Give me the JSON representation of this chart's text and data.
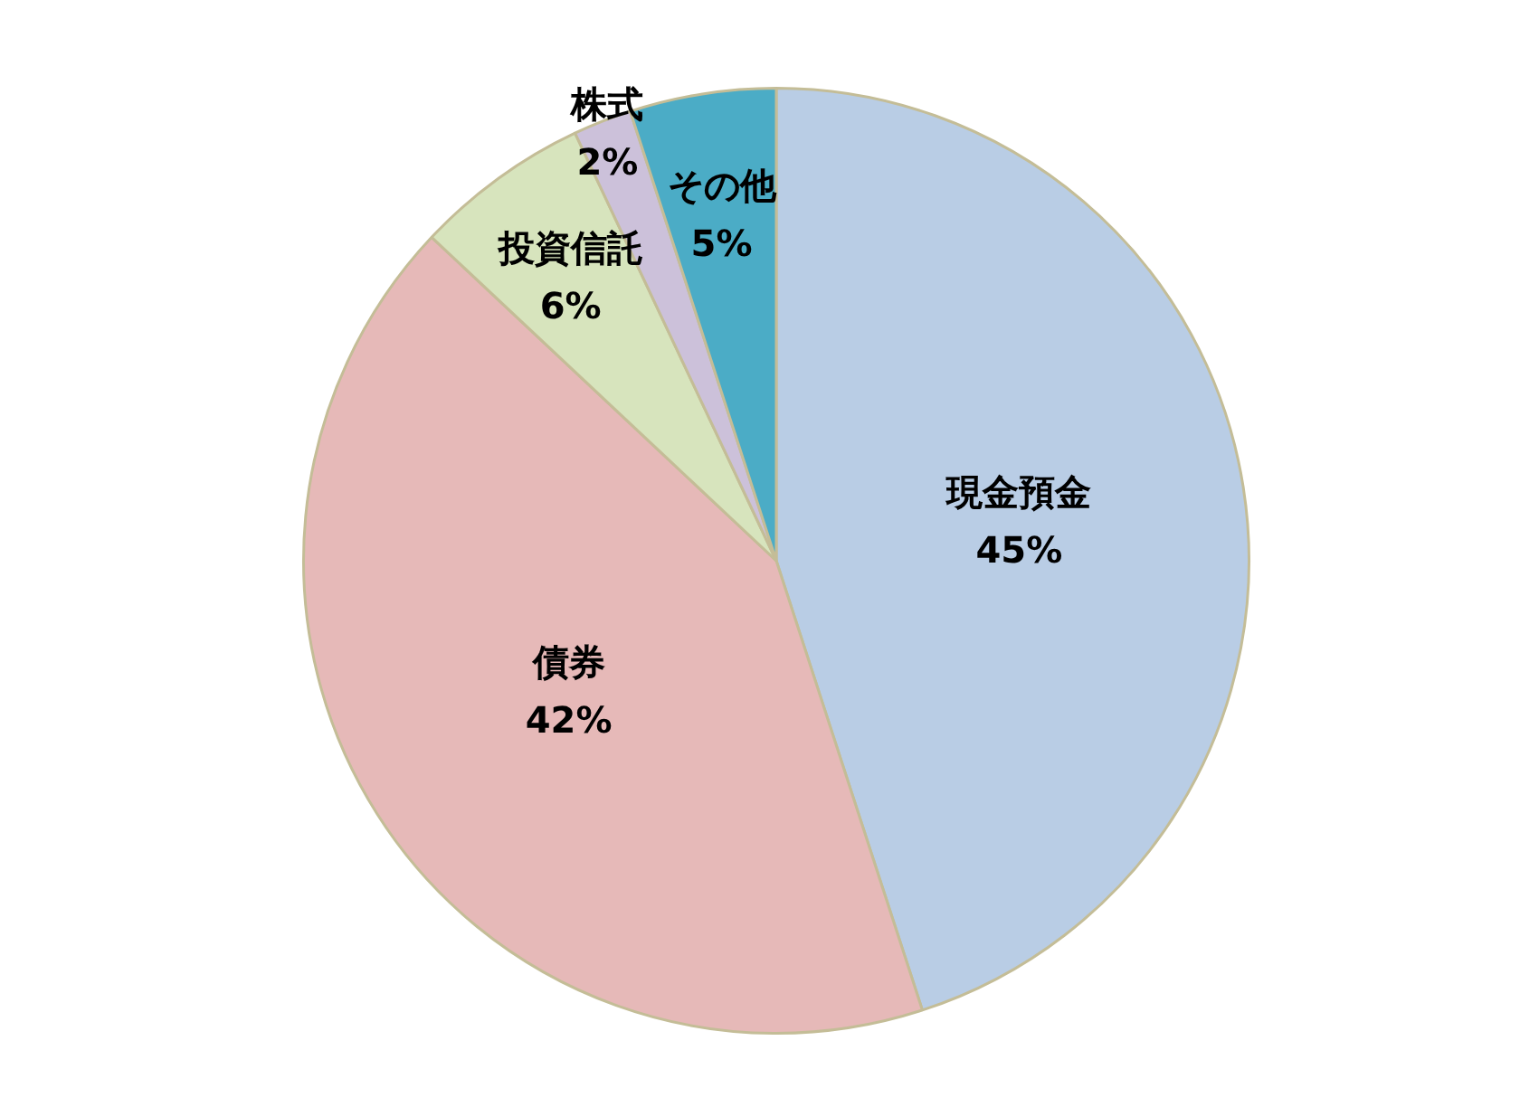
{
  "chart_data": {
    "type": "pie",
    "categories": [
      "現金預金",
      "債券",
      "投資信託",
      "株式",
      "その他"
    ],
    "values": [
      45,
      42,
      6,
      2,
      5
    ],
    "colors": [
      "#b9cde5",
      "#e6b9b8",
      "#d7e4bd",
      "#ccc1da",
      "#4bacc6"
    ],
    "value_labels": [
      "45%",
      "42%",
      "6%",
      "2%",
      "5%"
    ],
    "legend": false
  }
}
